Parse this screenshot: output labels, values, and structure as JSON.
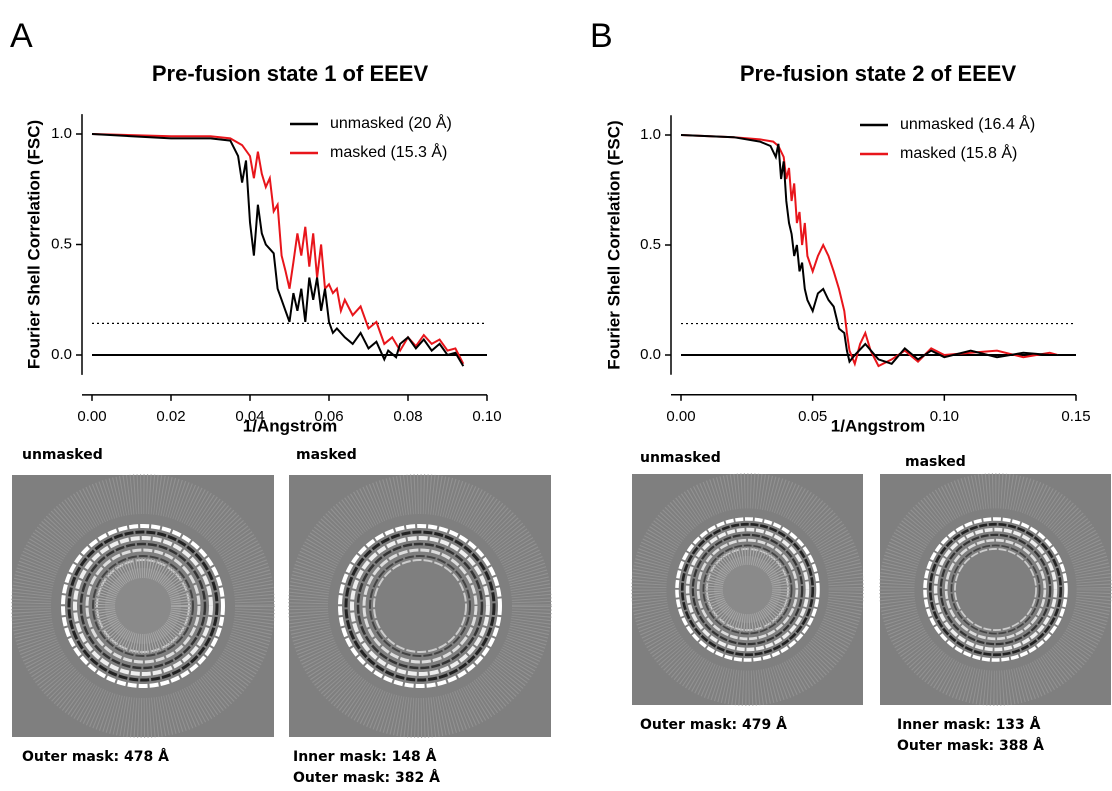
{
  "chart_data": [
    {
      "type": "line",
      "title": "Pre-fusion state 1 of EEEV",
      "xlabel": "1/Angstrom",
      "ylabel": "Fourier Shell Correlation (FSC)",
      "xlim": [
        0,
        0.1
      ],
      "ylim": [
        -0.09,
        1.09
      ],
      "xticks": [
        {
          "value": 0,
          "label": "0.00"
        },
        {
          "value": 0.02,
          "label": "0.02"
        },
        {
          "value": 0.04,
          "label": "0.04"
        },
        {
          "value": 0.06,
          "label": "0.06"
        },
        {
          "value": 0.08,
          "label": "0.08"
        },
        {
          "value": 0.1,
          "label": "0.10"
        }
      ],
      "yticks": [
        {
          "value": 0,
          "label": "0.0"
        },
        {
          "value": 0.5,
          "label": "0.5"
        },
        {
          "value": 1,
          "label": "1.0"
        }
      ],
      "hlines": [
        {
          "value": 0,
          "style": "solid"
        },
        {
          "value": 0.143,
          "style": "dotted"
        }
      ],
      "series": [
        {
          "name": "unmasked (20 Å)",
          "color": "#000000",
          "x": [
            0,
            0.01,
            0.02,
            0.03,
            0.035,
            0.037,
            0.038,
            0.039,
            0.04,
            0.041,
            0.042,
            0.043,
            0.044,
            0.045,
            0.046,
            0.047,
            0.048,
            0.049,
            0.05,
            0.051,
            0.052,
            0.053,
            0.054,
            0.055,
            0.056,
            0.057,
            0.058,
            0.059,
            0.06,
            0.061,
            0.062,
            0.064,
            0.066,
            0.068,
            0.07,
            0.072,
            0.074,
            0.075,
            0.077,
            0.078,
            0.08,
            0.082,
            0.084,
            0.086,
            0.088,
            0.09,
            0.092,
            0.094
          ],
          "values": [
            1.0,
            0.99,
            0.98,
            0.98,
            0.97,
            0.9,
            0.78,
            0.88,
            0.6,
            0.45,
            0.68,
            0.55,
            0.5,
            0.48,
            0.46,
            0.3,
            0.25,
            0.2,
            0.15,
            0.28,
            0.2,
            0.3,
            0.15,
            0.35,
            0.25,
            0.35,
            0.2,
            0.3,
            0.15,
            0.1,
            0.12,
            0.08,
            0.05,
            0.1,
            0.03,
            0.06,
            -0.02,
            0.02,
            -0.01,
            0.05,
            0.08,
            0.03,
            0.07,
            0.02,
            0.05,
            0.0,
            0.01,
            -0.05
          ]
        },
        {
          "name": "masked (15.3 Å)",
          "color": "#e8151b",
          "x": [
            0,
            0.02,
            0.03,
            0.035,
            0.038,
            0.04,
            0.041,
            0.042,
            0.043,
            0.044,
            0.045,
            0.046,
            0.047,
            0.048,
            0.049,
            0.05,
            0.051,
            0.052,
            0.053,
            0.054,
            0.055,
            0.056,
            0.057,
            0.058,
            0.059,
            0.06,
            0.061,
            0.062,
            0.063,
            0.064,
            0.066,
            0.068,
            0.07,
            0.072,
            0.074,
            0.076,
            0.078,
            0.08,
            0.082,
            0.084,
            0.086,
            0.088,
            0.09,
            0.092,
            0.094
          ],
          "values": [
            1.0,
            0.99,
            0.99,
            0.98,
            0.95,
            0.9,
            0.8,
            0.92,
            0.82,
            0.76,
            0.8,
            0.65,
            0.68,
            0.45,
            0.38,
            0.3,
            0.42,
            0.55,
            0.45,
            0.58,
            0.4,
            0.55,
            0.35,
            0.5,
            0.3,
            0.32,
            0.28,
            0.3,
            0.2,
            0.25,
            0.18,
            0.22,
            0.12,
            0.15,
            0.05,
            0.08,
            0.02,
            0.08,
            0.04,
            0.09,
            0.05,
            0.07,
            0.02,
            0.03,
            -0.04
          ]
        }
      ]
    },
    {
      "type": "line",
      "title": "Pre-fusion state 2 of EEEV",
      "xlabel": "1/Angstrom",
      "ylabel": "Fourier Shell Correlation (FSC)",
      "xlim": [
        0,
        0.15
      ],
      "ylim": [
        -0.09,
        1.09
      ],
      "xticks": [
        {
          "value": 0,
          "label": "0.00"
        },
        {
          "value": 0.05,
          "label": "0.05"
        },
        {
          "value": 0.1,
          "label": "0.10"
        },
        {
          "value": 0.15,
          "label": "0.15"
        }
      ],
      "yticks": [
        {
          "value": 0,
          "label": "0.0"
        },
        {
          "value": 0.5,
          "label": "0.5"
        },
        {
          "value": 1,
          "label": "1.0"
        }
      ],
      "hlines": [
        {
          "value": 0,
          "style": "solid"
        },
        {
          "value": 0.143,
          "style": "dotted"
        }
      ],
      "series": [
        {
          "name": "unmasked (16.4 Å)",
          "color": "#000000",
          "x": [
            0,
            0.02,
            0.03,
            0.034,
            0.036,
            0.037,
            0.038,
            0.039,
            0.04,
            0.041,
            0.042,
            0.043,
            0.044,
            0.045,
            0.046,
            0.047,
            0.048,
            0.05,
            0.052,
            0.054,
            0.056,
            0.058,
            0.06,
            0.062,
            0.063,
            0.064,
            0.066,
            0.07,
            0.075,
            0.08,
            0.085,
            0.09,
            0.095,
            0.1,
            0.11,
            0.12,
            0.13,
            0.14,
            0.143
          ],
          "values": [
            1.0,
            0.99,
            0.97,
            0.95,
            0.9,
            0.96,
            0.8,
            0.88,
            0.7,
            0.6,
            0.55,
            0.45,
            0.5,
            0.38,
            0.42,
            0.3,
            0.25,
            0.2,
            0.28,
            0.3,
            0.25,
            0.22,
            0.12,
            0.1,
            0.02,
            -0.03,
            0.0,
            0.05,
            -0.02,
            -0.04,
            0.03,
            -0.02,
            0.02,
            -0.01,
            0.02,
            -0.01,
            0.01,
            0.0,
            0.0
          ]
        },
        {
          "name": "masked (15.8 Å)",
          "color": "#e8151b",
          "x": [
            0,
            0.02,
            0.03,
            0.035,
            0.037,
            0.039,
            0.04,
            0.041,
            0.042,
            0.043,
            0.044,
            0.045,
            0.046,
            0.047,
            0.048,
            0.05,
            0.052,
            0.054,
            0.056,
            0.058,
            0.06,
            0.062,
            0.063,
            0.064,
            0.066,
            0.068,
            0.07,
            0.072,
            0.075,
            0.08,
            0.085,
            0.09,
            0.095,
            0.1,
            0.11,
            0.12,
            0.13,
            0.14,
            0.143
          ],
          "values": [
            1.0,
            0.99,
            0.98,
            0.97,
            0.95,
            0.9,
            0.8,
            0.85,
            0.7,
            0.78,
            0.6,
            0.65,
            0.5,
            0.6,
            0.45,
            0.38,
            0.45,
            0.5,
            0.45,
            0.38,
            0.3,
            0.2,
            0.1,
            0.02,
            -0.04,
            0.05,
            0.1,
            0.02,
            -0.05,
            -0.02,
            0.02,
            -0.03,
            0.03,
            0.0,
            0.01,
            0.02,
            -0.01,
            0.01,
            0.0
          ]
        }
      ]
    }
  ],
  "panels": [
    {
      "letter": "A",
      "images": [
        {
          "label": "unmasked",
          "caption": [
            "Outer mask: 478 Å"
          ]
        },
        {
          "label": "masked",
          "caption": [
            "Inner mask: 148 Å",
            "Outer mask: 382 Å"
          ]
        }
      ]
    },
    {
      "letter": "B",
      "images": [
        {
          "label": "unmasked",
          "caption": [
            "Outer mask: 479 Å"
          ]
        },
        {
          "label": "masked",
          "caption": [
            "Inner mask: 133 Å",
            "Outer mask: 388 Å"
          ]
        }
      ]
    }
  ]
}
